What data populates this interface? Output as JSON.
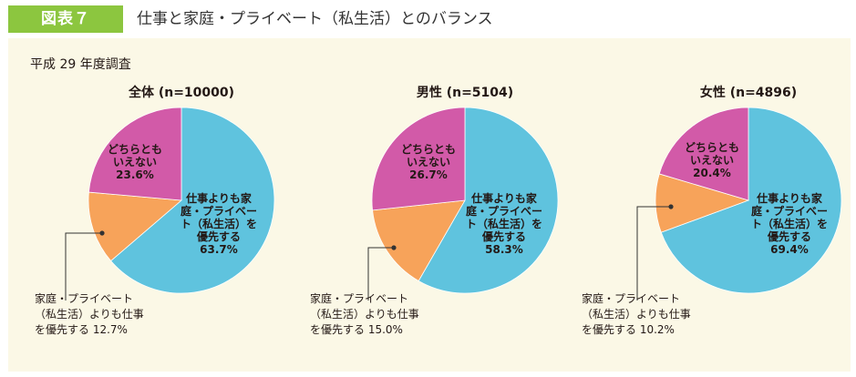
{
  "header": {
    "badge": "図表７",
    "title": "仕事と家庭・プライベート（私生活）とのバランス"
  },
  "subtitle": "平成 29 年度調査",
  "colors": {
    "work": "#5fc3de",
    "family": "#f7a35a",
    "neither": "#d25aa8",
    "badge": "#8cc63f",
    "panel": "#fbf8e6"
  },
  "chart_data": [
    {
      "type": "pie",
      "title": "全体 (n=10000)",
      "series": [
        {
          "label_lines": [
            "仕事よりも家",
            "庭・プライベー",
            "ト（私生活）を",
            "優先する",
            "63.7%"
          ],
          "value": 63.7
        },
        {
          "label_lines": [
            "家庭・プライベート",
            "（私生活）よりも仕事",
            "を優先する 12.7%"
          ],
          "value": 12.7
        },
        {
          "label_lines": [
            "どちらとも",
            "いえない",
            "23.6%"
          ],
          "value": 23.6
        }
      ]
    },
    {
      "type": "pie",
      "title": "男性 (n=5104)",
      "series": [
        {
          "label_lines": [
            "仕事よりも家",
            "庭・プライベー",
            "ト（私生活）を",
            "優先する",
            "58.3%"
          ],
          "value": 58.3
        },
        {
          "label_lines": [
            "家庭・プライベート",
            "（私生活）よりも仕事",
            "を優先する 15.0%"
          ],
          "value": 15.0
        },
        {
          "label_lines": [
            "どちらとも",
            "いえない",
            "26.7%"
          ],
          "value": 26.7
        }
      ]
    },
    {
      "type": "pie",
      "title": "女性 (n=4896)",
      "series": [
        {
          "label_lines": [
            "仕事よりも家",
            "庭・プライベー",
            "ト（私生活）を",
            "優先する",
            "69.4%"
          ],
          "value": 69.4
        },
        {
          "label_lines": [
            "家庭・プライベート",
            "（私生活）よりも仕事",
            "を優先する 10.2%"
          ],
          "value": 10.2
        },
        {
          "label_lines": [
            "どちらとも",
            "いえない",
            "20.4%"
          ],
          "value": 20.4
        }
      ]
    }
  ]
}
